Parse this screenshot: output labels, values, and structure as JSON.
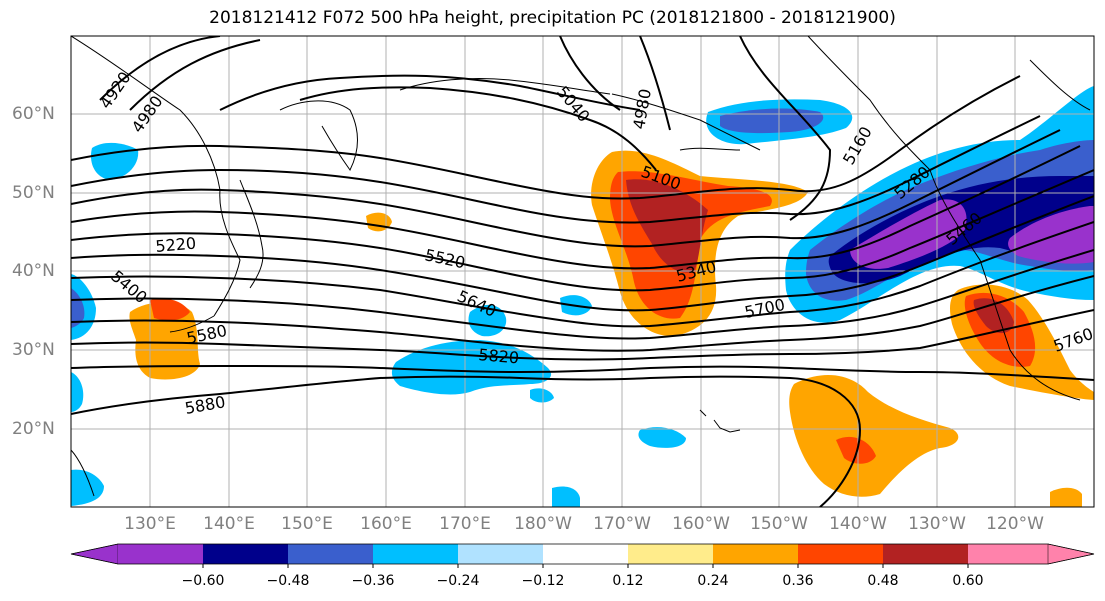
{
  "title": "2018121412 F072 500 hPa height, precipitation PC (2018121800 - 2018121900)",
  "latitude_labels": [
    "60°N",
    "50°N",
    "40°N",
    "30°N",
    "20°N"
  ],
  "longitude_labels": [
    "130°E",
    "140°E",
    "150°E",
    "160°E",
    "170°E",
    "180°W",
    "170°W",
    "160°W",
    "150°W",
    "140°W",
    "130°W",
    "120°W"
  ],
  "contour_labels": [
    "4920",
    "4980",
    "5040",
    "4980",
    "5100",
    "5160",
    "5220",
    "5280",
    "5340",
    "5400",
    "5460",
    "5520",
    "5580",
    "5640",
    "5700",
    "5760",
    "5820",
    "5880"
  ],
  "colorbar": {
    "tick_labels": [
      "−0.60",
      "−0.48",
      "−0.36",
      "−0.24",
      "−0.12",
      "0.12",
      "0.24",
      "0.36",
      "0.48",
      "0.60"
    ],
    "colors": [
      "#9932cc",
      "#00008b",
      "#3a5fcd",
      "#00bfff",
      "#b0e2ff",
      "#ffffff",
      "#ffec8b",
      "#ffa500",
      "#ff4500",
      "#b22222",
      "#ff82ab"
    ]
  }
}
